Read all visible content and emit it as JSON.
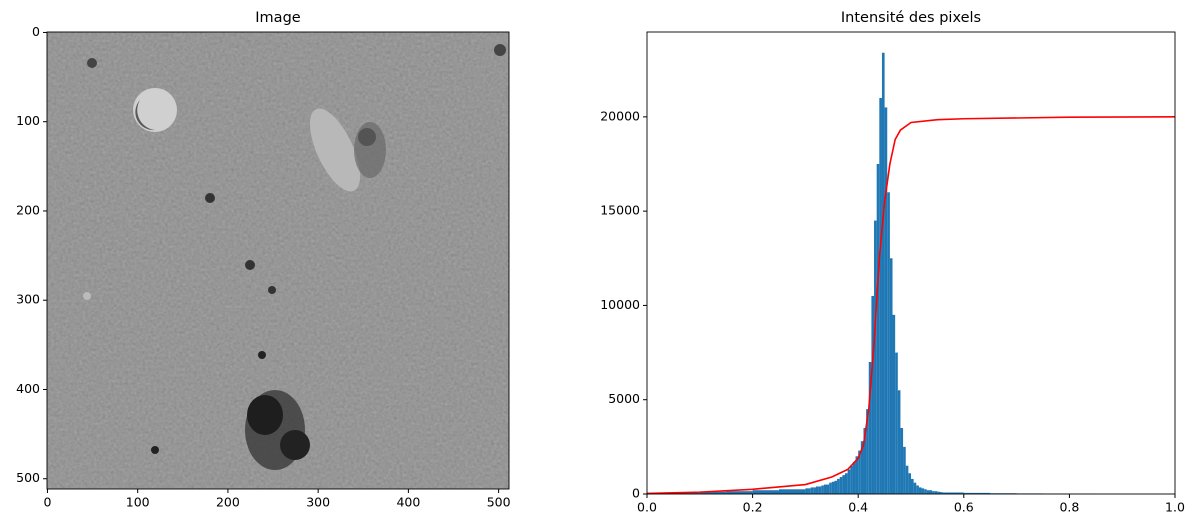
{
  "chart_data": [
    {
      "type": "image",
      "title": "Image",
      "xlim": [
        -0.5,
        511.5
      ],
      "ylim": [
        511.5,
        -0.5
      ],
      "xticks": [
        0,
        100,
        200,
        300,
        400,
        500
      ],
      "yticks": [
        0,
        100,
        200,
        300,
        400,
        500
      ]
    },
    {
      "type": "histogram",
      "title": "Intensité des pixels",
      "color": "#1f77b4",
      "bins": [
        0,
        0.05,
        0.1,
        0.15,
        0.2,
        0.25,
        0.3,
        0.305,
        0.31,
        0.315,
        0.32,
        0.325,
        0.33,
        0.335,
        0.34,
        0.345,
        0.35,
        0.355,
        0.36,
        0.365,
        0.37,
        0.375,
        0.38,
        0.385,
        0.39,
        0.395,
        0.4,
        0.405,
        0.41,
        0.415,
        0.42,
        0.425,
        0.43,
        0.435,
        0.44,
        0.445,
        0.45,
        0.455,
        0.46,
        0.465,
        0.47,
        0.475,
        0.48,
        0.485,
        0.49,
        0.495,
        0.5,
        0.505,
        0.51,
        0.515,
        0.52,
        0.525,
        0.53,
        0.535,
        0.54,
        0.545,
        0.55,
        0.555,
        0.56,
        0.6,
        0.65,
        0.7,
        0.75,
        0.8,
        0.85,
        0.9,
        0.95,
        1.0
      ],
      "values": [
        50,
        80,
        120,
        150,
        200,
        250,
        300,
        300,
        350,
        350,
        400,
        400,
        450,
        500,
        500,
        600,
        650,
        700,
        800,
        900,
        1000,
        1100,
        1300,
        1500,
        1700,
        2000,
        2300,
        2800,
        3500,
        4500,
        7000,
        10500,
        14500,
        17500,
        21000,
        23400,
        20500,
        16000,
        12500,
        9500,
        7500,
        5500,
        3500,
        2500,
        1500,
        1100,
        800,
        600,
        450,
        350,
        300,
        250,
        200,
        200,
        150,
        150,
        120,
        100,
        80,
        60,
        40,
        30,
        20,
        15,
        10,
        5,
        5
      ],
      "overlay": {
        "type": "line",
        "color": "#ff0000",
        "x": [
          0,
          0.1,
          0.2,
          0.3,
          0.35,
          0.38,
          0.4,
          0.41,
          0.42,
          0.43,
          0.44,
          0.45,
          0.46,
          0.47,
          0.48,
          0.5,
          0.55,
          0.6,
          0.8,
          1.0
        ],
        "values": [
          30,
          100,
          250,
          500,
          900,
          1300,
          1900,
          2600,
          4500,
          8000,
          12500,
          15500,
          17500,
          18800,
          19300,
          19700,
          19850,
          19900,
          19980,
          20000
        ]
      },
      "xlim": [
        0,
        1
      ],
      "ylim": [
        0,
        24500
      ],
      "xticks": [
        {
          "value": 0,
          "label": "0.0"
        },
        0.2,
        0.4,
        0.6,
        0.8,
        {
          "value": 1,
          "label": "1.0"
        }
      ],
      "yticks": [
        0,
        5000,
        10000,
        15000,
        20000
      ]
    }
  ]
}
